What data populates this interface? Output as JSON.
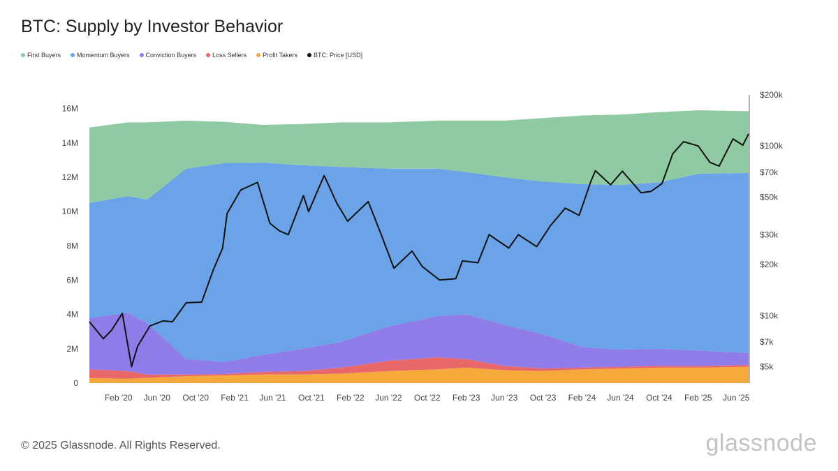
{
  "chart_data": {
    "type": "area",
    "title": "BTC: Supply by Investor Behavior",
    "legend": [
      {
        "name": "First Buyers",
        "color": "#8fcaa3"
      },
      {
        "name": "Momentum Buyers",
        "color": "#6aa3e8"
      },
      {
        "name": "Conviction Buyers",
        "color": "#8f7ce8"
      },
      {
        "name": "Loss Sellers",
        "color": "#e8686a"
      },
      {
        "name": "Profit Takers",
        "color": "#f5a93b"
      },
      {
        "name": "BTC: Price [USD]",
        "color": "#111111"
      }
    ],
    "legend_position": "top-left",
    "x_ticks": [
      "Feb '20",
      "Jun '20",
      "Oct '20",
      "Feb '21",
      "Jun '21",
      "Oct '21",
      "Feb '22",
      "Jun '22",
      "Oct '22",
      "Feb '23",
      "Jun '23",
      "Oct '23",
      "Feb '24",
      "Jun '24",
      "Oct '24",
      "Feb '25",
      "Jun '25"
    ],
    "y_left_ticks": [
      "0",
      "2M",
      "4M",
      "6M",
      "8M",
      "10M",
      "12M",
      "14M",
      "16M"
    ],
    "y_left_range": [
      0,
      16800000
    ],
    "y_right_ticks": [
      "$5k",
      "$7k",
      "$10k",
      "$20k",
      "$30k",
      "$50k",
      "$70k",
      "$100k",
      "$200k"
    ],
    "y_right_values": [
      5000,
      7000,
      10000,
      20000,
      30000,
      50000,
      70000,
      100000,
      200000
    ],
    "y_right_scale": "log",
    "y_right_range": [
      4000,
      200000
    ],
    "x_range": [
      "2019-11-01",
      "2025-07-10"
    ],
    "stacked_series": [
      {
        "name": "Profit Takers",
        "color": "#f5a93b",
        "x": [
          "2019-11-01",
          "2020-03-01",
          "2020-05-01",
          "2020-09-01",
          "2021-01-01",
          "2021-05-01",
          "2021-09-01",
          "2022-01-01",
          "2022-06-01",
          "2022-11-01",
          "2023-02-01",
          "2023-06-01",
          "2023-10-01",
          "2024-02-01",
          "2024-06-01",
          "2024-10-01",
          "2025-02-01",
          "2025-07-10"
        ],
        "values": [
          300000,
          250000,
          300000,
          400000,
          450000,
          500000,
          500000,
          550000,
          700000,
          800000,
          900000,
          750000,
          700000,
          800000,
          850000,
          900000,
          900000,
          950000
        ]
      },
      {
        "name": "Loss Sellers",
        "color": "#e8686a",
        "x": [
          "2019-11-01",
          "2020-03-01",
          "2020-05-01",
          "2020-09-01",
          "2021-01-01",
          "2021-05-01",
          "2021-09-01",
          "2022-01-01",
          "2022-06-01",
          "2022-11-01",
          "2023-02-01",
          "2023-06-01",
          "2023-10-01",
          "2024-02-01",
          "2024-06-01",
          "2024-10-01",
          "2025-02-01",
          "2025-07-10"
        ],
        "values": [
          500000,
          450000,
          200000,
          100000,
          80000,
          150000,
          200000,
          350000,
          600000,
          700000,
          500000,
          250000,
          150000,
          100000,
          100000,
          100000,
          100000,
          100000
        ]
      },
      {
        "name": "Conviction Buyers",
        "color": "#8f7ce8",
        "x": [
          "2019-11-01",
          "2020-03-01",
          "2020-05-01",
          "2020-09-01",
          "2021-01-01",
          "2021-05-01",
          "2021-09-01",
          "2022-01-01",
          "2022-06-01",
          "2022-11-01",
          "2023-02-01",
          "2023-06-01",
          "2023-10-01",
          "2024-02-01",
          "2024-06-01",
          "2024-10-01",
          "2025-02-01",
          "2025-07-10"
        ],
        "values": [
          3000000,
          3400000,
          3000000,
          900000,
          700000,
          1000000,
          1300000,
          1500000,
          2000000,
          2400000,
          2600000,
          2400000,
          2000000,
          1200000,
          1000000,
          1000000,
          900000,
          700000
        ]
      },
      {
        "name": "Momentum Buyers",
        "color": "#6aa3e8",
        "x": [
          "2019-11-01",
          "2020-03-01",
          "2020-05-01",
          "2020-09-01",
          "2021-01-01",
          "2021-05-01",
          "2021-09-01",
          "2022-01-01",
          "2022-06-01",
          "2022-11-01",
          "2023-02-01",
          "2023-06-01",
          "2023-10-01",
          "2024-02-01",
          "2024-06-01",
          "2024-10-01",
          "2025-02-01",
          "2025-07-10"
        ],
        "values": [
          6700000,
          6800000,
          7200000,
          11100000,
          11600000,
          11200000,
          10700000,
          10200000,
          9200000,
          8600000,
          8300000,
          8600000,
          8900000,
          9500000,
          9600000,
          9700000,
          10300000,
          10500000
        ]
      },
      {
        "name": "First Buyers",
        "color": "#8fcaa3",
        "x": [
          "2019-11-01",
          "2020-03-01",
          "2020-05-01",
          "2020-09-01",
          "2021-01-01",
          "2021-05-01",
          "2021-09-01",
          "2022-01-01",
          "2022-06-01",
          "2022-11-01",
          "2023-02-01",
          "2023-06-01",
          "2023-10-01",
          "2024-02-01",
          "2024-06-01",
          "2024-10-01",
          "2025-02-01",
          "2025-07-10"
        ],
        "values": [
          4400000,
          4300000,
          4500000,
          2800000,
          2400000,
          2200000,
          2400000,
          2600000,
          2700000,
          2800000,
          3000000,
          3300000,
          3700000,
          4000000,
          4100000,
          4100000,
          3700000,
          3600000
        ]
      }
    ],
    "price_series": {
      "name": "BTC: Price [USD]",
      "color": "#111111",
      "axis": "right",
      "x": [
        "2019-11-01",
        "2019-12-15",
        "2020-01-10",
        "2020-02-13",
        "2020-03-13",
        "2020-04-01",
        "2020-05-10",
        "2020-06-20",
        "2020-07-20",
        "2020-09-01",
        "2020-10-20",
        "2020-11-25",
        "2020-12-25",
        "2021-01-08",
        "2021-02-20",
        "2021-04-14",
        "2021-05-23",
        "2021-06-22",
        "2021-07-20",
        "2021-09-06",
        "2021-09-22",
        "2021-11-10",
        "2021-12-20",
        "2022-01-23",
        "2022-03-29",
        "2022-05-12",
        "2022-06-18",
        "2022-08-14",
        "2022-09-15",
        "2022-11-09",
        "2022-12-30",
        "2023-01-20",
        "2023-03-10",
        "2023-04-14",
        "2023-06-15",
        "2023-07-15",
        "2023-09-11",
        "2023-10-25",
        "2023-12-10",
        "2024-01-23",
        "2024-02-29",
        "2024-03-14",
        "2024-05-01",
        "2024-06-07",
        "2024-08-05",
        "2024-09-06",
        "2024-10-10",
        "2024-11-13",
        "2024-12-17",
        "2025-02-01",
        "2025-03-10",
        "2025-04-08",
        "2025-05-22",
        "2025-06-22",
        "2025-07-10"
      ],
      "values": [
        9200,
        7300,
        8200,
        10300,
        5000,
        6600,
        8700,
        9300,
        9200,
        11900,
        12000,
        18500,
        25000,
        40000,
        55000,
        61000,
        35000,
        31600,
        30000,
        51000,
        41000,
        67000,
        46000,
        36000,
        47000,
        29000,
        19000,
        24000,
        19500,
        16200,
        16500,
        21000,
        20500,
        30000,
        25000,
        30000,
        25500,
        34000,
        43000,
        39000,
        62000,
        71500,
        59000,
        71000,
        53000,
        54000,
        60000,
        90000,
        106000,
        100000,
        80000,
        76000,
        110000,
        101000,
        118000
      ]
    }
  },
  "footer": {
    "copyright": "© 2025 Glassnode. All Rights Reserved.",
    "logo": "glassnode"
  }
}
